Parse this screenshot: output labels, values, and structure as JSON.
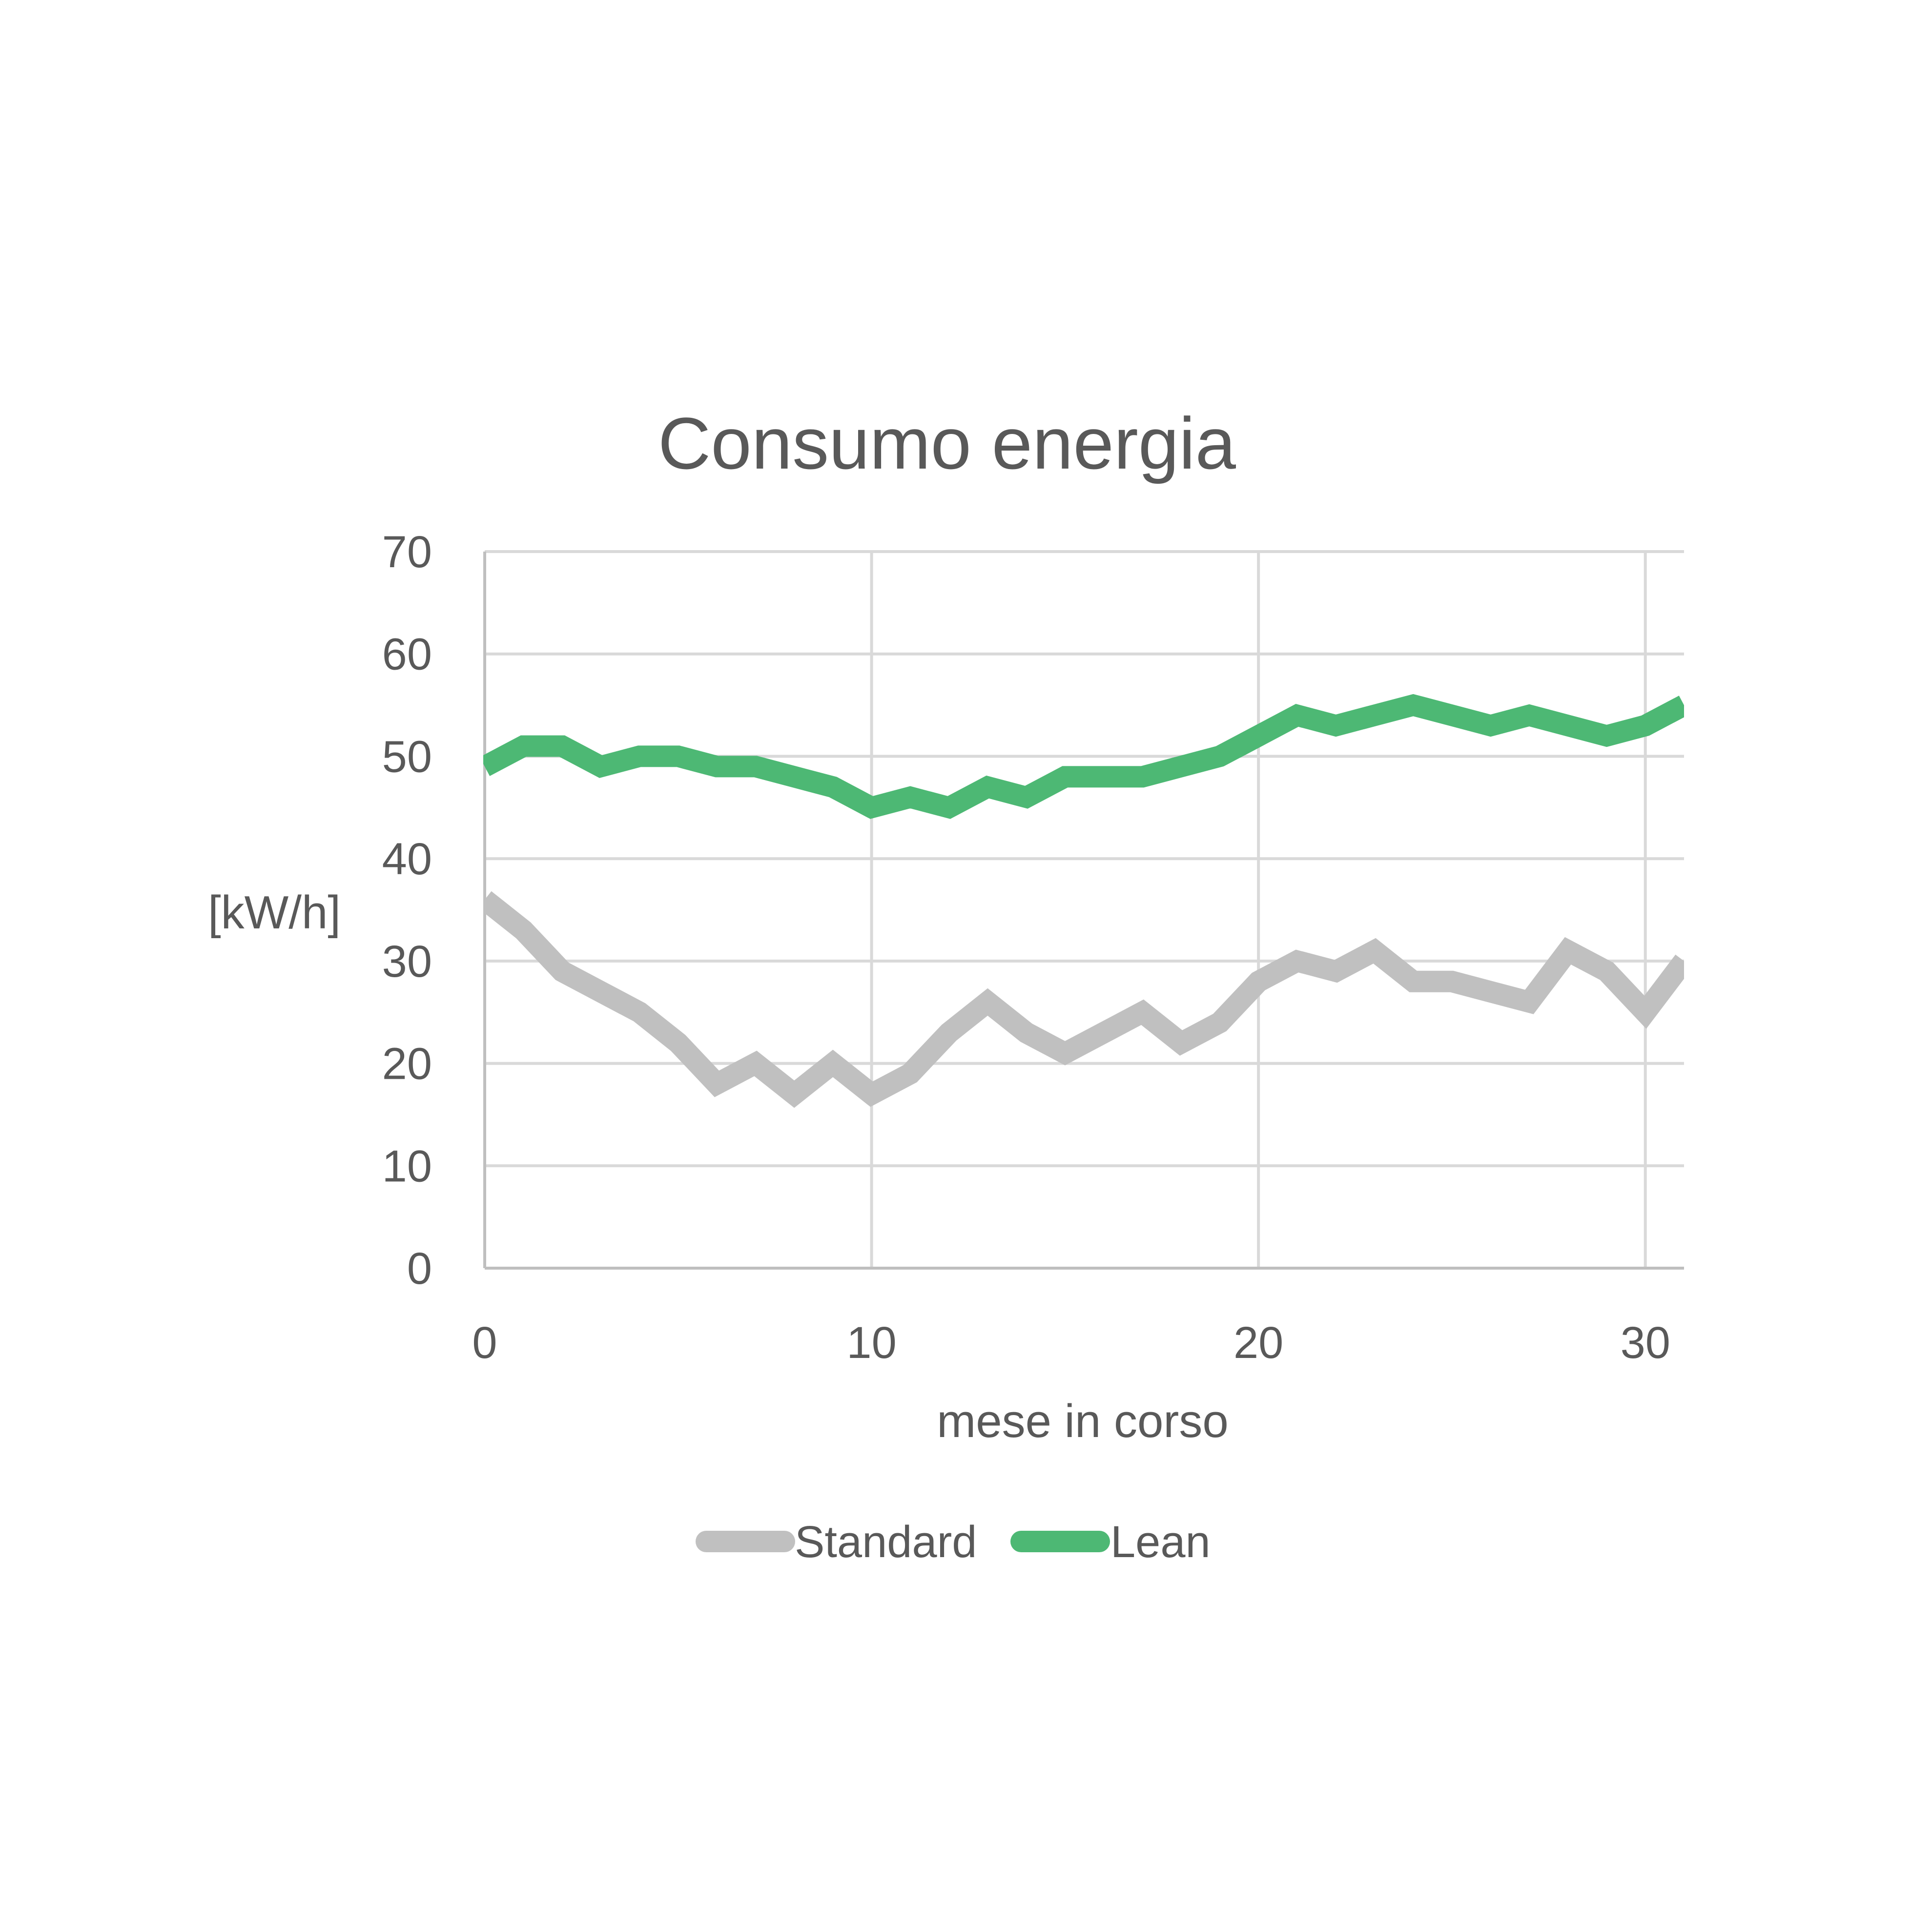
{
  "chart_data": {
    "type": "line",
    "title": "Consumo energia",
    "xlabel": "mese in corso",
    "ylabel": "[kW/h]",
    "xlim": [
      0,
      31
    ],
    "ylim": [
      0,
      70
    ],
    "xticks": [
      0,
      10,
      20,
      30
    ],
    "yticks": [
      0,
      10,
      20,
      30,
      40,
      50,
      60,
      70
    ],
    "x_tick_labels": [
      "0",
      "10",
      "20",
      "30"
    ],
    "y_tick_labels": [
      "0",
      "10",
      "20",
      "30",
      "40",
      "50",
      "60",
      "70"
    ],
    "grid": "on",
    "legend": "bottom",
    "x": [
      0,
      1,
      2,
      3,
      4,
      5,
      6,
      7,
      8,
      9,
      10,
      11,
      12,
      13,
      14,
      15,
      16,
      17,
      18,
      19,
      20,
      21,
      22,
      23,
      24,
      25,
      26,
      27,
      28,
      29,
      30,
      31
    ],
    "series": [
      {
        "name": "Standard",
        "color": "#c0c0c0",
        "values": [
          36,
          33,
          29,
          27,
          25,
          22,
          18,
          20,
          17,
          20,
          17,
          19,
          23,
          26,
          23,
          21,
          23,
          25,
          22,
          24,
          28,
          30,
          29,
          31,
          28,
          28,
          27,
          26,
          31,
          29,
          25,
          30
        ]
      },
      {
        "name": "Lean",
        "color": "#4db874",
        "values": [
          49,
          51,
          51,
          49,
          50,
          50,
          49,
          49,
          48,
          47,
          45,
          46,
          45,
          47,
          46,
          48,
          48,
          48,
          49,
          50,
          52,
          54,
          53,
          54,
          55,
          54,
          53,
          54,
          53,
          52,
          53,
          55
        ]
      }
    ]
  }
}
